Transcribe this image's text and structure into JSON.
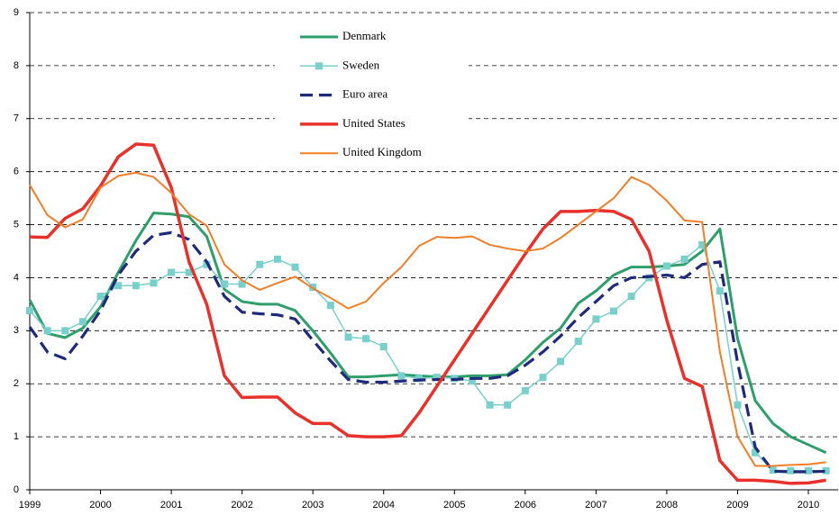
{
  "chart_data": {
    "type": "line",
    "x": [
      1999,
      1999.25,
      1999.5,
      1999.75,
      2000,
      2000.25,
      2000.5,
      2000.75,
      2001,
      2001.25,
      2001.5,
      2001.75,
      2002,
      2002.25,
      2002.5,
      2002.75,
      2003,
      2003.25,
      2003.5,
      2003.75,
      2004,
      2004.25,
      2004.5,
      2004.75,
      2005,
      2005.25,
      2005.5,
      2005.75,
      2006,
      2006.25,
      2006.5,
      2006.75,
      2007,
      2007.25,
      2007.5,
      2007.75,
      2008,
      2008.25,
      2008.5,
      2008.75,
      2009,
      2009.25,
      2009.5,
      2009.75,
      2010,
      2010.25
    ],
    "series": [
      {
        "name": "Denmark",
        "color": "#2e9e6b",
        "values": [
          3.58,
          2.95,
          2.87,
          3.05,
          3.45,
          4.1,
          4.7,
          5.22,
          5.2,
          5.15,
          4.78,
          3.78,
          3.55,
          3.5,
          3.5,
          3.38,
          3.0,
          2.58,
          2.13,
          2.13,
          2.15,
          2.17,
          2.15,
          2.13,
          2.13,
          2.15,
          2.15,
          2.17,
          2.45,
          2.78,
          3.05,
          3.52,
          3.75,
          4.05,
          4.2,
          4.2,
          4.22,
          4.25,
          4.5,
          4.92,
          2.85,
          1.68,
          1.25,
          1.0,
          0.85,
          0.7
        ]
      },
      {
        "name": "Sweden",
        "color": "#78cfcc",
        "marker": "square",
        "values": [
          3.38,
          3.0,
          3.0,
          3.17,
          3.65,
          3.85,
          3.85,
          3.9,
          4.1,
          4.1,
          4.25,
          3.88,
          3.88,
          4.25,
          4.35,
          4.2,
          3.82,
          3.48,
          2.88,
          2.85,
          2.7,
          2.15,
          2.1,
          2.12,
          2.1,
          2.05,
          1.6,
          1.6,
          1.87,
          2.12,
          2.42,
          2.8,
          3.22,
          3.37,
          3.65,
          4.0,
          4.22,
          4.35,
          4.62,
          3.75,
          1.6,
          0.7,
          0.37,
          0.36,
          0.36,
          0.36
        ]
      },
      {
        "name": "Euro area",
        "color": "#1f2a7a",
        "dashed": true,
        "values": [
          3.07,
          2.6,
          2.47,
          2.9,
          3.38,
          4.05,
          4.5,
          4.8,
          4.85,
          4.72,
          4.3,
          3.65,
          3.35,
          3.32,
          3.3,
          3.22,
          2.82,
          2.43,
          2.08,
          2.03,
          2.03,
          2.05,
          2.07,
          2.08,
          2.08,
          2.1,
          2.1,
          2.15,
          2.35,
          2.6,
          2.9,
          3.25,
          3.55,
          3.85,
          4.0,
          4.02,
          4.05,
          4.0,
          4.25,
          4.3,
          2.4,
          0.8,
          0.35,
          0.34,
          0.34,
          0.35
        ]
      },
      {
        "name": "United States",
        "color": "#e8312a",
        "values": [
          4.77,
          4.76,
          5.12,
          5.3,
          5.73,
          6.28,
          6.52,
          6.5,
          5.7,
          4.3,
          3.5,
          2.15,
          1.74,
          1.75,
          1.75,
          1.45,
          1.25,
          1.25,
          1.02,
          1.0,
          1.0,
          1.02,
          1.45,
          1.95,
          2.45,
          2.95,
          3.45,
          3.95,
          4.45,
          4.92,
          5.25,
          5.25,
          5.27,
          5.25,
          5.1,
          4.5,
          3.2,
          2.1,
          1.95,
          0.55,
          0.18,
          0.18,
          0.16,
          0.12,
          0.13,
          0.18
        ]
      },
      {
        "name": "United Kingdom",
        "color": "#f07f2a",
        "values": [
          5.75,
          5.18,
          4.95,
          5.1,
          5.7,
          5.92,
          5.98,
          5.9,
          5.6,
          5.2,
          4.98,
          4.25,
          3.95,
          3.77,
          3.9,
          4.02,
          3.8,
          3.62,
          3.42,
          3.55,
          3.9,
          4.2,
          4.6,
          4.77,
          4.75,
          4.78,
          4.62,
          4.55,
          4.5,
          4.55,
          4.75,
          5.0,
          5.25,
          5.5,
          5.9,
          5.75,
          5.45,
          5.08,
          5.05,
          2.6,
          1.0,
          0.45,
          0.45,
          0.47,
          0.48,
          0.52
        ]
      }
    ],
    "xlim": [
      1999,
      2010.42
    ],
    "xticks": [
      1999,
      2000,
      2001,
      2002,
      2003,
      2004,
      2005,
      2006,
      2007,
      2008,
      2009,
      2010
    ],
    "ylim": [
      0,
      9
    ],
    "yticks": [
      0,
      1,
      2,
      3,
      4,
      5,
      6,
      7,
      8,
      9
    ],
    "grid": true,
    "legend": "top"
  }
}
